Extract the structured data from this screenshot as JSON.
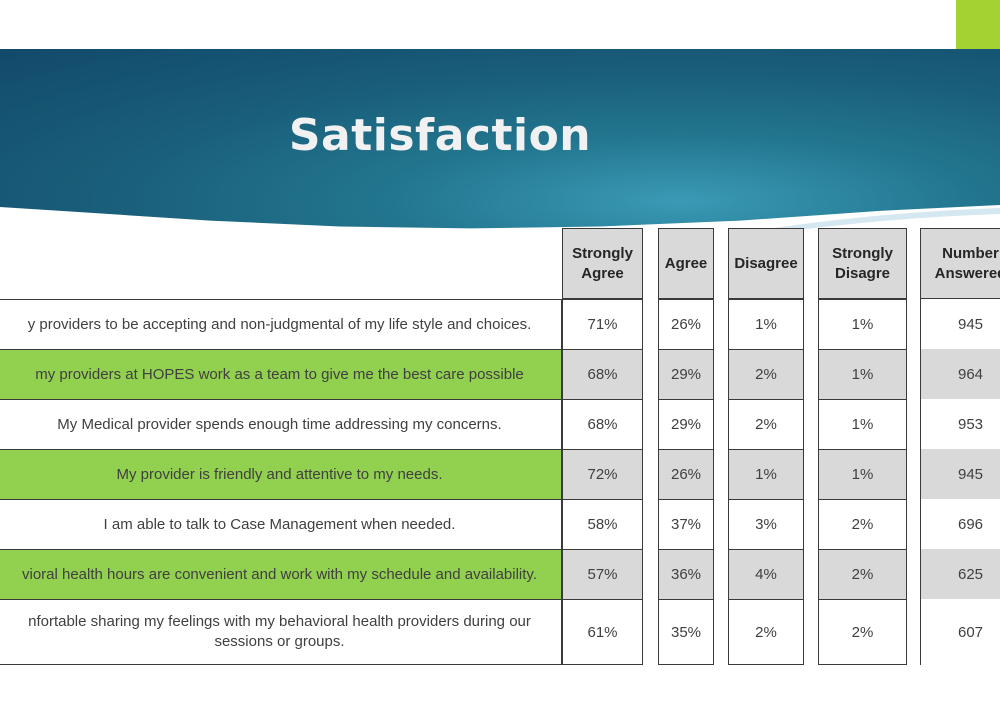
{
  "slide": {
    "title": "Satisfaction",
    "accent_color": "#92d050",
    "stripe_color": "#d9d9d9",
    "corner_block_color": "#a4d233"
  },
  "table": {
    "columns": [
      "Strongly\nAgree",
      "Agree",
      "Disagree",
      "Strongly\nDisagre",
      "Number\nAnswered"
    ],
    "rows": [
      {
        "question": "y providers to be accepting and non-judgmental  of my life style and choices.",
        "values": [
          "71%",
          "26%",
          "1%",
          "1%",
          "945"
        ]
      },
      {
        "question": "my providers at HOPES work as a team to give me the best care possible",
        "values": [
          "68%",
          "29%",
          "2%",
          "1%",
          "964"
        ]
      },
      {
        "question": "My Medical provider spends enough time addressing my concerns.",
        "values": [
          "68%",
          "29%",
          "2%",
          "1%",
          "953"
        ]
      },
      {
        "question": "My provider is friendly and attentive to my needs.",
        "values": [
          "72%",
          "26%",
          "1%",
          "1%",
          "945"
        ]
      },
      {
        "question": "I am able to talk to Case Management when needed.",
        "values": [
          "58%",
          "37%",
          "3%",
          "2%",
          "696"
        ]
      },
      {
        "question": "vioral health hours are convenient  and work with my schedule and availability.",
        "values": [
          "57%",
          "36%",
          "4%",
          "2%",
          "625"
        ]
      },
      {
        "question": "nfortable sharing my feelings with my behavioral health providers during our\nsessions or groups.",
        "values": [
          "61%",
          "35%",
          "2%",
          "2%",
          "607"
        ]
      }
    ]
  }
}
